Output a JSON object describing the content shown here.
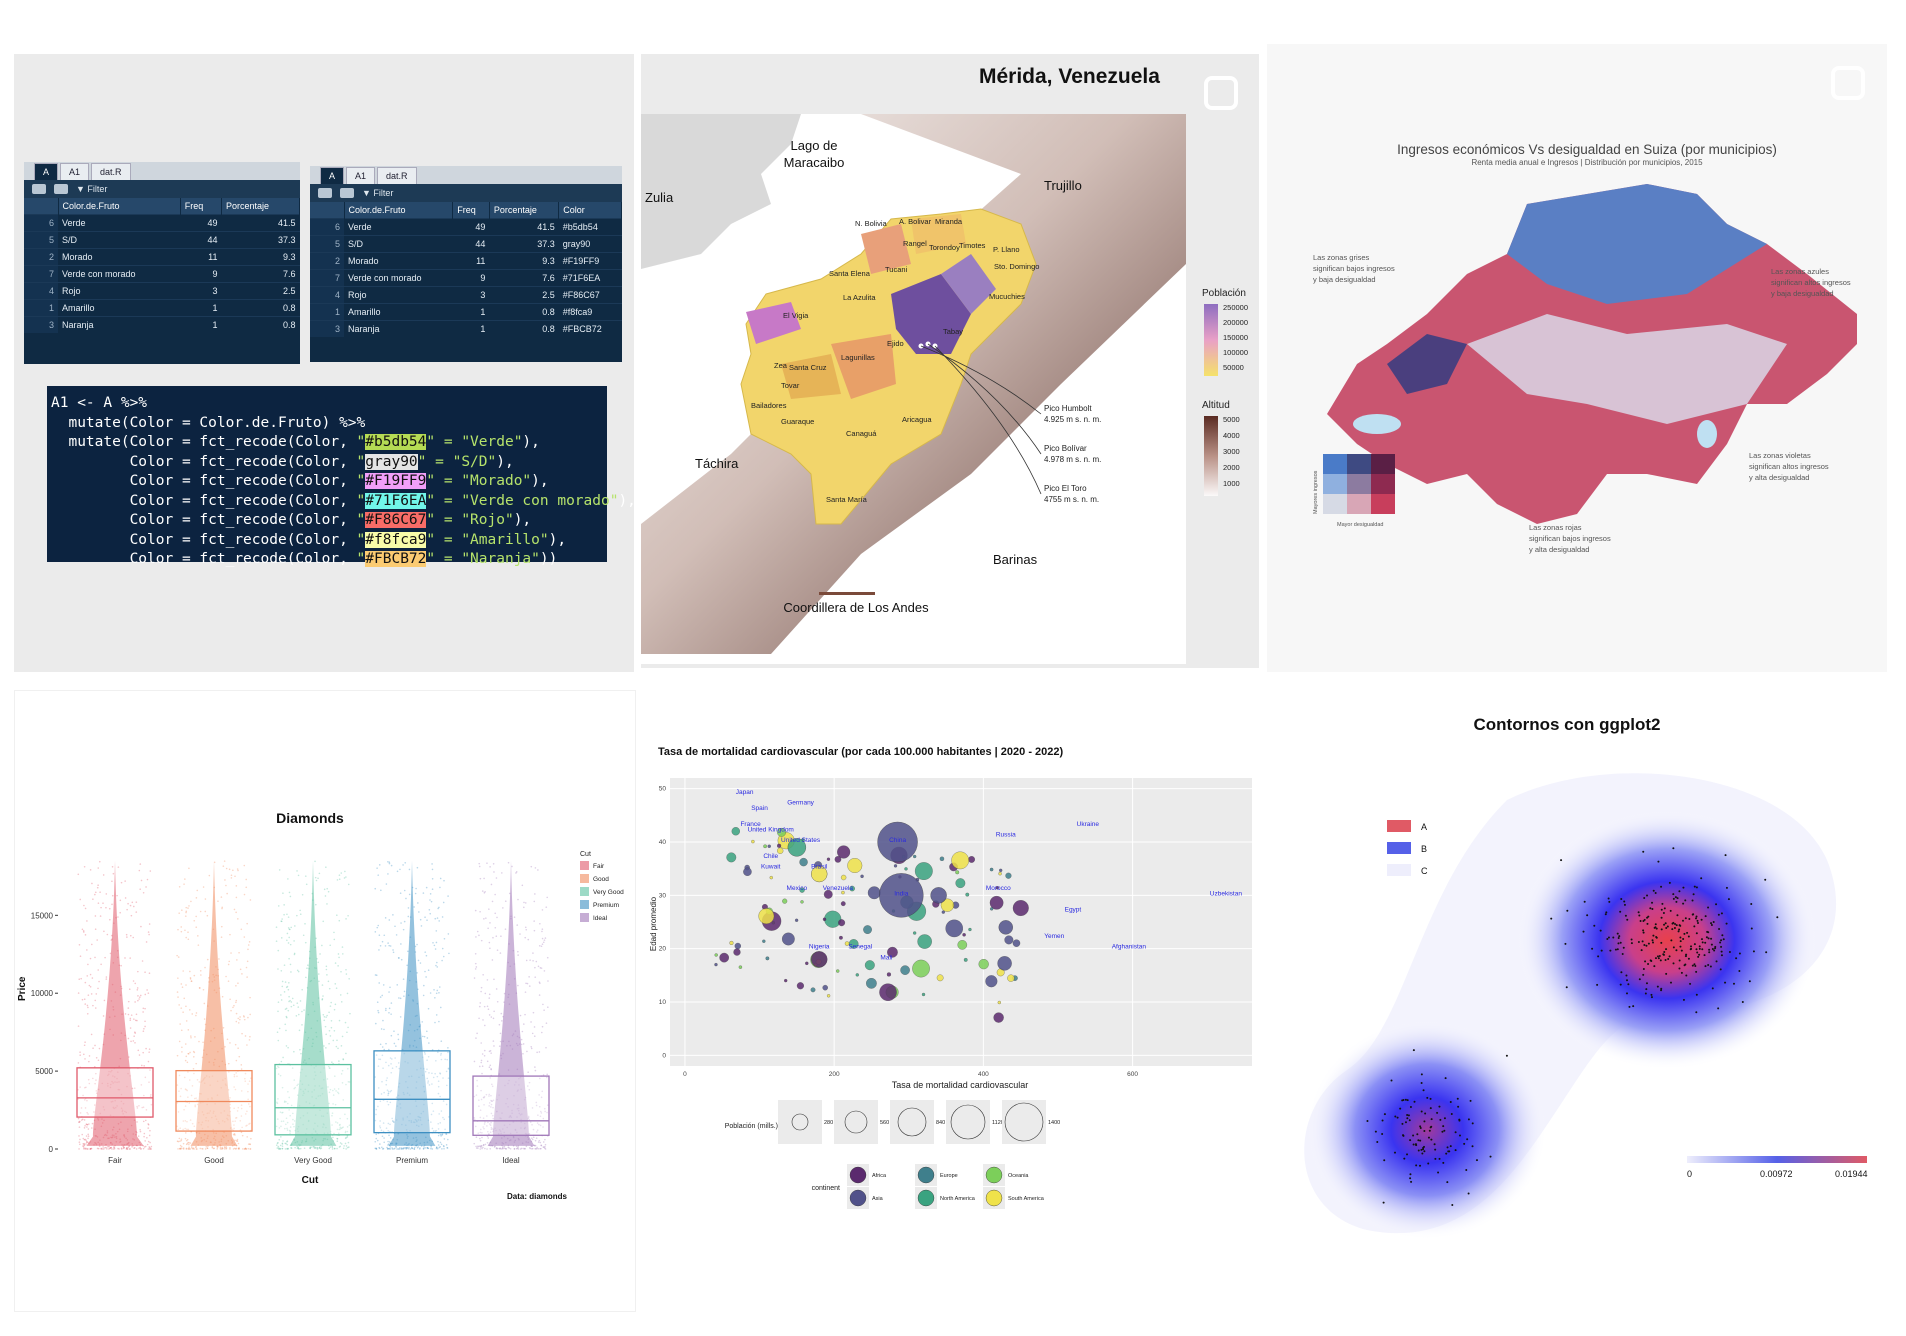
{
  "rstudio": {
    "tabs": [
      "A",
      "A1",
      "dat.R"
    ],
    "filter_label": "Filter",
    "table1": {
      "headers": [
        "Color.de.Fruto",
        "Freq",
        "Porcentaje"
      ],
      "rows": [
        {
          "idx": "6",
          "name": "Verde",
          "freq": "49",
          "pct": "41.5"
        },
        {
          "idx": "5",
          "name": "S/D",
          "freq": "44",
          "pct": "37.3"
        },
        {
          "idx": "2",
          "name": "Morado",
          "freq": "11",
          "pct": "9.3"
        },
        {
          "idx": "7",
          "name": "Verde con morado",
          "freq": "9",
          "pct": "7.6"
        },
        {
          "idx": "4",
          "name": "Rojo",
          "freq": "3",
          "pct": "2.5"
        },
        {
          "idx": "1",
          "name": "Amarillo",
          "freq": "1",
          "pct": "0.8"
        },
        {
          "idx": "3",
          "name": "Naranja",
          "freq": "1",
          "pct": "0.8"
        }
      ]
    },
    "table2": {
      "headers": [
        "Color.de.Fruto",
        "Freq",
        "Porcentaje",
        "Color"
      ],
      "rows": [
        {
          "idx": "6",
          "name": "Verde",
          "freq": "49",
          "pct": "41.5",
          "color": "#b5db54"
        },
        {
          "idx": "5",
          "name": "S/D",
          "freq": "44",
          "pct": "37.3",
          "color": "gray90"
        },
        {
          "idx": "2",
          "name": "Morado",
          "freq": "11",
          "pct": "9.3",
          "color": "#F19FF9"
        },
        {
          "idx": "7",
          "name": "Verde con morado",
          "freq": "9",
          "pct": "7.6",
          "color": "#71F6EA"
        },
        {
          "idx": "4",
          "name": "Rojo",
          "freq": "3",
          "pct": "2.5",
          "color": "#F86C67"
        },
        {
          "idx": "1",
          "name": "Amarillo",
          "freq": "1",
          "pct": "0.8",
          "color": "#f8fca9"
        },
        {
          "idx": "3",
          "name": "Naranja",
          "freq": "1",
          "pct": "0.8",
          "color": "#FBCB72"
        }
      ]
    },
    "code": {
      "line1": "A1 <- A %>%",
      "line2": "  mutate(Color = Color.de.Fruto) %>%",
      "recodes": [
        {
          "prefix": "  mutate(Color = fct_recode(Color, ",
          "code": "#b5db54",
          "label": "\"Verde\"",
          "suffix": "),",
          "bg": "#b5db54"
        },
        {
          "prefix": "         Color = fct_recode(Color, ",
          "code": "gray90",
          "label": "\"S/D\"",
          "suffix": "),",
          "bg": "#e5e5e5"
        },
        {
          "prefix": "         Color = fct_recode(Color, ",
          "code": "#F19FF9",
          "label": "\"Morado\"",
          "suffix": "),",
          "bg": "#F19FF9"
        },
        {
          "prefix": "         Color = fct_recode(Color, ",
          "code": "#71F6EA",
          "label": "\"Verde con morado\"",
          "suffix": "),",
          "bg": "#71F6EA"
        },
        {
          "prefix": "         Color = fct_recode(Color, ",
          "code": "#F86C67",
          "label": "\"Rojo\"",
          "suffix": "),",
          "bg": "#F86C67"
        },
        {
          "prefix": "         Color = fct_recode(Color, ",
          "code": "#f8fca9",
          "label": "\"Amarillo\"",
          "suffix": "),",
          "bg": "#f8fca9"
        },
        {
          "prefix": "         Color = fct_recode(Color, ",
          "code": "#FBCB72",
          "label": "\"Naranja\"",
          "suffix": "))",
          "bg": "#FBCB72"
        }
      ]
    }
  },
  "merida": {
    "title": "Mérida, Venezuela",
    "regions": [
      "Zulia",
      "Lago de",
      "Maracaibo",
      "Trujillo",
      "Táchira",
      "Barinas",
      "Coordillera de Los Andes"
    ],
    "municipios": [
      "N. Bolivia",
      "A. Bolivar",
      "Miranda",
      "Rangel",
      "Torondoy",
      "Timotes",
      "P. Llano",
      "Sto. Domingo",
      "Santa Elena",
      "Tucani",
      "Mucuchies",
      "La Azulita",
      "El Vigia",
      "Tabay",
      "Ejido",
      "Lagunillas",
      "Zea",
      "Santa Cruz",
      "Tovar",
      "Bailadores",
      "Guaraque",
      "Canaguá",
      "Aricagua",
      "Santa María"
    ],
    "peaks": [
      {
        "name": "Pico Humbolt",
        "alt": "4.925 m s. n. m."
      },
      {
        "name": "Pico Bolívar",
        "alt": "4.978 m s. n. m."
      },
      {
        "name": "Pico El Toro",
        "alt": "4755 m s. n. m."
      }
    ],
    "pop_legend": {
      "title": "Población",
      "labels": [
        "250000",
        "200000",
        "150000",
        "100000",
        "50000"
      ]
    },
    "alt_legend": {
      "title": "Altitud",
      "labels": [
        "5000",
        "4000",
        "3000",
        "2000",
        "1000"
      ]
    }
  },
  "suiza": {
    "title": "Ingresos económicos Vs desigualdad en Suiza (por municipios)",
    "subtitle": "Renta media anual e Ingresos | Distribución por municipios, 2015",
    "notes": [
      [
        "Las zonas grises",
        "significan bajos ingresos",
        "y baja desigualdad"
      ],
      [
        "Las zonas azules",
        "significan altos ingresos",
        "y baja desigualdad"
      ],
      [
        "Las zonas violetas",
        "significan altos ingresos",
        "y alta desigualdad"
      ],
      [
        "Las zonas rojas",
        "significan bajos ingresos",
        "y alta desigualdad"
      ]
    ],
    "legend_y": "Mayores ingresos",
    "legend_x": "Mayor desigualdad"
  },
  "diamonds": {
    "chart_data": {
      "type": "boxplot",
      "title": "Diamonds",
      "xlabel": "Cut",
      "ylabel": "Price",
      "caption": "Data: diamonds",
      "categories": [
        "Fair",
        "Good",
        "Very Good",
        "Premium",
        "Ideal"
      ],
      "legend_title": "Cut",
      "ylim": [
        0,
        19000
      ],
      "yticks": [
        "0",
        "5000",
        "10000",
        "15000"
      ],
      "colors": [
        "#e0596a",
        "#f08a5d",
        "#5cc1a0",
        "#3d8fc2",
        "#a077b8"
      ],
      "boxes": [
        {
          "q1": 2050,
          "median": 3280,
          "q3": 5210
        },
        {
          "q1": 1150,
          "median": 3050,
          "q3": 5030
        },
        {
          "q1": 910,
          "median": 2650,
          "q3": 5420
        },
        {
          "q1": 1050,
          "median": 3190,
          "q3": 6300
        },
        {
          "q1": 880,
          "median": 1810,
          "q3": 4680
        }
      ]
    }
  },
  "mortalidad": {
    "chart_data": {
      "type": "scatter",
      "title": "Tasa de mortalidad cardiovascular (por cada 100.000 habitantes | 2020 - 2022)",
      "xlabel": "Tasa de mortalidad cardiovascular",
      "ylabel": "Edad promedio",
      "xticks": [
        "0",
        "200",
        "400",
        "600"
      ],
      "yticks": [
        "0",
        "10",
        "20",
        "30",
        "40",
        "50"
      ],
      "xlim": [
        -20,
        760
      ],
      "ylim": [
        -2,
        52
      ],
      "size_legend_title": "Población (mills.)",
      "size_legend": [
        "280",
        "560",
        "840",
        "1120",
        "1400"
      ],
      "color_legend_title": "continent",
      "continents": [
        {
          "name": "Africa",
          "color": "#5b2a6e"
        },
        {
          "name": "Europe",
          "color": "#3f7f8c"
        },
        {
          "name": "Oceania",
          "color": "#7ccf5a"
        },
        {
          "name": "Asia",
          "color": "#51528a"
        },
        {
          "name": "North America",
          "color": "#3aa380"
        },
        {
          "name": "South America",
          "color": "#efe24a"
        }
      ],
      "labels": [
        {
          "text": "Japan",
          "x": 80,
          "y": 49
        },
        {
          "text": "Spain",
          "x": 100,
          "y": 46
        },
        {
          "text": "Germany",
          "x": 155,
          "y": 47
        },
        {
          "text": "France",
          "x": 88,
          "y": 43
        },
        {
          "text": "United Kingdom",
          "x": 115,
          "y": 42
        },
        {
          "text": "United States",
          "x": 155,
          "y": 40
        },
        {
          "text": "China",
          "x": 285,
          "y": 40
        },
        {
          "text": "Russia",
          "x": 430,
          "y": 41
        },
        {
          "text": "Ukraine",
          "x": 540,
          "y": 43
        },
        {
          "text": "Chile",
          "x": 115,
          "y": 37
        },
        {
          "text": "Brasil",
          "x": 180,
          "y": 35
        },
        {
          "text": "Kuwait",
          "x": 115,
          "y": 35
        },
        {
          "text": "Mexico",
          "x": 150,
          "y": 31
        },
        {
          "text": "Venezuela",
          "x": 205,
          "y": 31
        },
        {
          "text": "India",
          "x": 290,
          "y": 30
        },
        {
          "text": "Morocco",
          "x": 420,
          "y": 31
        },
        {
          "text": "Egypt",
          "x": 520,
          "y": 27
        },
        {
          "text": "Uzbekistan",
          "x": 725,
          "y": 30
        },
        {
          "text": "Yemen",
          "x": 495,
          "y": 22
        },
        {
          "text": "Afghanistan",
          "x": 595,
          "y": 20
        },
        {
          "text": "Nigeria",
          "x": 180,
          "y": 20
        },
        {
          "text": "Senegal",
          "x": 235,
          "y": 20
        },
        {
          "text": "Mali",
          "x": 270,
          "y": 18
        }
      ]
    }
  },
  "contornos": {
    "chart_data": {
      "type": "density-contour",
      "title": "Contornos con ggplot2",
      "legend_groups": [
        {
          "name": "A",
          "color": "#e05a65"
        },
        {
          "name": "B",
          "color": "#5560e8"
        },
        {
          "name": "C",
          "color": "#eeeefc"
        }
      ],
      "colorbar_labels": [
        "0",
        "0.00972",
        "0.01944"
      ]
    }
  }
}
